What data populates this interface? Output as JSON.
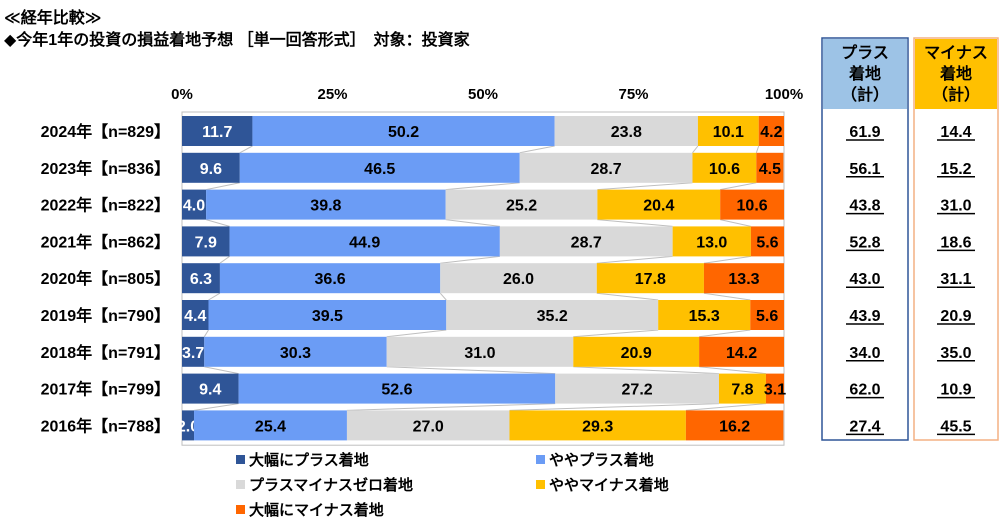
{
  "header": {
    "section": "≪経年比較≫",
    "title": "◆今年1年の投資の損益着地予想 ［単一回答形式］　対象：投資家"
  },
  "chart_data": {
    "type": "bar",
    "orientation": "horizontal",
    "stacked": true,
    "xlim": [
      0,
      100
    ],
    "xticks": [
      "0%",
      "25%",
      "50%",
      "75%",
      "100%"
    ],
    "categories": [
      "2024年【n=829】",
      "2023年【n=836】",
      "2022年【n=822】",
      "2021年【n=862】",
      "2020年【n=805】",
      "2019年【n=790】",
      "2018年【n=791】",
      "2017年【n=799】",
      "2016年【n=788】"
    ],
    "series": [
      {
        "name": "大幅にプラス着地",
        "color": "#2f5597",
        "label_color": "#fff",
        "values": [
          11.7,
          9.6,
          4.0,
          7.9,
          6.3,
          4.4,
          3.7,
          9.4,
          2.0
        ]
      },
      {
        "name": "ややプラス着地",
        "color": "#6b9cf5",
        "label_color": "#000",
        "values": [
          50.2,
          46.5,
          39.8,
          44.9,
          36.6,
          39.5,
          30.3,
          52.6,
          25.4
        ]
      },
      {
        "name": "プラスマイナスゼロ着地",
        "color": "#d9d9d9",
        "label_color": "#000",
        "values": [
          23.8,
          28.7,
          25.2,
          28.7,
          26.0,
          35.2,
          31.0,
          27.2,
          27.0
        ]
      },
      {
        "name": "ややマイナス着地",
        "color": "#ffc000",
        "label_color": "#000",
        "values": [
          10.1,
          10.6,
          20.4,
          13.0,
          17.8,
          15.3,
          20.9,
          7.8,
          29.3
        ]
      },
      {
        "name": "大幅にマイナス着地",
        "color": "#ff6600",
        "label_color": "#000",
        "values": [
          4.2,
          4.5,
          10.6,
          5.6,
          13.3,
          5.6,
          14.2,
          3.1,
          16.2
        ]
      }
    ],
    "legend": "bottom",
    "summary": [
      {
        "title": [
          "プラス",
          "着地",
          "（計）"
        ],
        "border": "#2f5597",
        "header_bg": "#9dc3e6",
        "values": [
          "61.9",
          "56.1",
          "43.8",
          "52.8",
          "43.0",
          "43.9",
          "34.0",
          "62.0",
          "27.4"
        ]
      },
      {
        "title": [
          "マイナス",
          "着地",
          "（計）"
        ],
        "border": "#f4b183",
        "header_bg": "#ffc000",
        "values": [
          "14.4",
          "15.2",
          "31.0",
          "18.6",
          "31.1",
          "20.9",
          "35.0",
          "10.9",
          "45.5"
        ]
      }
    ]
  }
}
